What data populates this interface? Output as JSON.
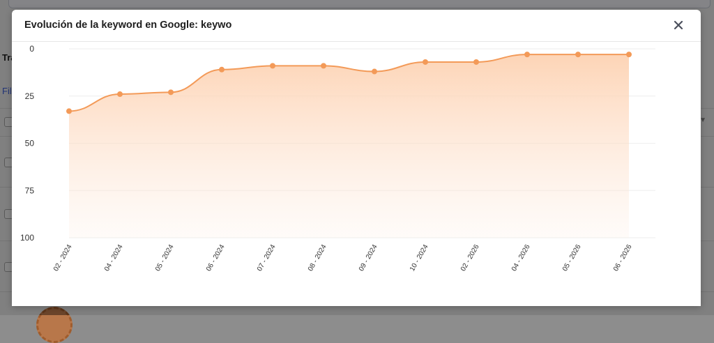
{
  "modal": {
    "title": "Evolución de la keyword en Google: keywo",
    "close_label": "×"
  },
  "background": {
    "label_tr": "Tra",
    "link_fil": "Fil"
  },
  "colors": {
    "line": "#f39a58",
    "fill_top": "#fdd2b2",
    "point": "#f39a58",
    "grid": "#eeeeee"
  },
  "chart_data": {
    "type": "area",
    "title": "",
    "xlabel": "",
    "ylabel": "",
    "y_inverted": true,
    "ylim": [
      0,
      100
    ],
    "y_ticks": [
      0,
      25,
      50,
      75,
      100
    ],
    "grid": true,
    "categories": [
      "02 - 2024",
      "04 - 2024",
      "05 - 2024",
      "06 - 2024",
      "07 - 2024",
      "08 - 2024",
      "09 - 2024",
      "10 - 2024",
      "02 - 2026",
      "04 - 2026",
      "05 - 2026",
      "06 - 2026"
    ],
    "values": [
      33,
      24,
      23,
      11,
      9,
      9,
      12,
      7,
      7,
      3,
      3,
      3
    ]
  }
}
